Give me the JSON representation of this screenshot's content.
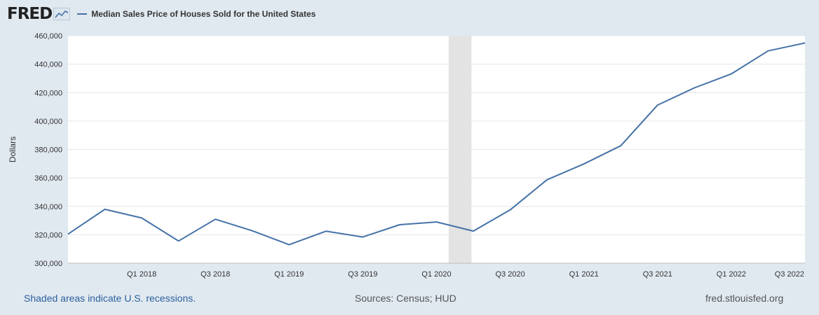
{
  "brand": {
    "logo_text": "FRED"
  },
  "legend": {
    "series_name": "Median Sales Price of Houses Sold for the United States",
    "line_color": "#4572a7"
  },
  "footer": {
    "recession_note": "Shaded areas indicate U.S. recessions.",
    "sources": "Sources: Census; HUD",
    "site": "fred.stlouisfed.org"
  },
  "chart_data": {
    "type": "line",
    "ylabel": "Dollars",
    "ylim": [
      300000,
      460000
    ],
    "y_ticks": [
      "300,000",
      "320,000",
      "340,000",
      "360,000",
      "380,000",
      "400,000",
      "420,000",
      "440,000",
      "460,000"
    ],
    "x_tick_labels": [
      "Q1 2018",
      "Q3 2018",
      "Q1 2019",
      "Q3 2019",
      "Q1 2020",
      "Q3 2020",
      "Q1 2021",
      "Q3 2021",
      "Q1 2022",
      "Q3 2022"
    ],
    "series": [
      {
        "name": "Median Sales Price of Houses Sold for the United States",
        "color": "#4572a7",
        "x": [
          "Q3 2017",
          "Q4 2017",
          "Q1 2018",
          "Q2 2018",
          "Q3 2018",
          "Q4 2018",
          "Q1 2019",
          "Q2 2019",
          "Q3 2019",
          "Q4 2019",
          "Q1 2020",
          "Q2 2020",
          "Q3 2020",
          "Q4 2020",
          "Q1 2021",
          "Q2 2021",
          "Q3 2021",
          "Q4 2021",
          "Q1 2022",
          "Q2 2022",
          "Q3 2022"
        ],
        "values": [
          320500,
          337900,
          331800,
          315600,
          330900,
          322800,
          313000,
          322500,
          318400,
          327100,
          329000,
          322600,
          337500,
          358700,
          369800,
          382600,
          411200,
          423300,
          433100,
          449300,
          454900
        ]
      }
    ],
    "recession": {
      "start": "Q1 2020",
      "end": "Q2 2020",
      "color": "#e3e3e3"
    },
    "grid": true,
    "legend_position": "top-left"
  }
}
